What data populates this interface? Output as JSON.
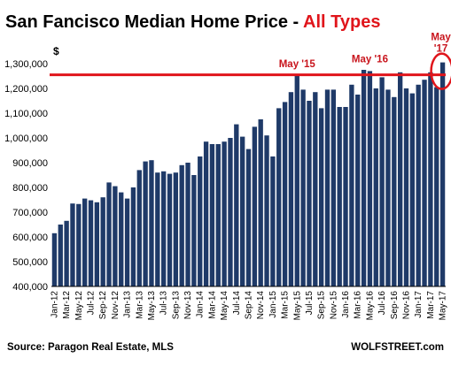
{
  "header": {
    "title_main": "San Fancisco Median Home Price - ",
    "title_accent": "All Types"
  },
  "footer": {
    "source": "Source: Paragon Real Estate, MLS",
    "brand": "WOLFSTREET.com"
  },
  "colors": {
    "bar": "#1f3a68",
    "accent": "#e0151b",
    "annotation": "#c8141c",
    "text": "#000000"
  },
  "chart_data": {
    "type": "bar",
    "unit_label": "$",
    "ylim": [
      400000,
      1300000
    ],
    "y_ticks": [
      400000,
      500000,
      600000,
      700000,
      800000,
      900000,
      1000000,
      1100000,
      1200000,
      1300000
    ],
    "y_tick_labels": [
      "400,000",
      "500,000",
      "600,000",
      "700,000",
      "800,000",
      "900,000",
      "1,000,000",
      "1,100,000",
      "1,200,000",
      "1,300,000"
    ],
    "grid": false,
    "categories": [
      "Jan-12",
      "Feb-12",
      "Mar-12",
      "Apr-12",
      "May-12",
      "Jun-12",
      "Jul-12",
      "Aug-12",
      "Sep-12",
      "Oct-12",
      "Nov-12",
      "Dec-12",
      "Jan-13",
      "Feb-13",
      "Mar-13",
      "Apr-13",
      "May-13",
      "Jun-13",
      "Jul-13",
      "Aug-13",
      "Sep-13",
      "Oct-13",
      "Nov-13",
      "Dec-13",
      "Jan-14",
      "Feb-14",
      "Mar-14",
      "Apr-14",
      "May-14",
      "Jun-14",
      "Jul-14",
      "Aug-14",
      "Sep-14",
      "Oct-14",
      "Nov-14",
      "Dec-14",
      "Jan-15",
      "Feb-15",
      "Mar-15",
      "Apr-15",
      "May-15",
      "Jun-15",
      "Jul-15",
      "Aug-15",
      "Sep-15",
      "Oct-15",
      "Nov-15",
      "Dec-15",
      "Jan-16",
      "Feb-16",
      "Mar-16",
      "Apr-16",
      "May-16",
      "Jun-16",
      "Jul-16",
      "Aug-16",
      "Sep-16",
      "Oct-16",
      "Nov-16",
      "Dec-16",
      "Jan-17",
      "Feb-17",
      "Mar-17",
      "Apr-17",
      "May-17"
    ],
    "tick_labels": [
      "Jan-12",
      "Mar-12",
      "May-12",
      "Jul-12",
      "Sep-12",
      "Nov-12",
      "Jan-13",
      "Mar-13",
      "May-13",
      "Jul-13",
      "Sep-13",
      "Nov-13",
      "Jan-14",
      "Mar-14",
      "May-14",
      "Jul-14",
      "Sep-14",
      "Nov-14",
      "Jan-15",
      "Mar-15",
      "May-15",
      "Jul-15",
      "Sep-15",
      "Nov-15",
      "Jan-16",
      "Mar-16",
      "May-16",
      "Jul-16",
      "Sep-16",
      "Nov-16",
      "Jan-17",
      "Mar-17",
      "May-17"
    ],
    "values": [
      615000,
      650000,
      665000,
      735000,
      733000,
      755000,
      748000,
      740000,
      760000,
      820000,
      805000,
      780000,
      755000,
      800000,
      870000,
      905000,
      910000,
      860000,
      865000,
      855000,
      860000,
      890000,
      900000,
      850000,
      925000,
      985000,
      975000,
      975000,
      985000,
      1000000,
      1055000,
      1005000,
      955000,
      1045000,
      1075000,
      1010000,
      925000,
      1120000,
      1145000,
      1185000,
      1250000,
      1195000,
      1150000,
      1185000,
      1120000,
      1195000,
      1195000,
      1125000,
      1125000,
      1215000,
      1175000,
      1275000,
      1270000,
      1200000,
      1245000,
      1195000,
      1165000,
      1265000,
      1200000,
      1180000,
      1215000,
      1235000,
      1265000,
      1205000,
      1305000
    ],
    "reference_line": {
      "value": 1255000
    },
    "annotations": [
      {
        "label": "May '15",
        "category": "May-15"
      },
      {
        "label": "May '16",
        "category": "May-16"
      },
      {
        "label_line1": "May",
        "label_line2": "'17",
        "category": "May-17"
      }
    ]
  }
}
